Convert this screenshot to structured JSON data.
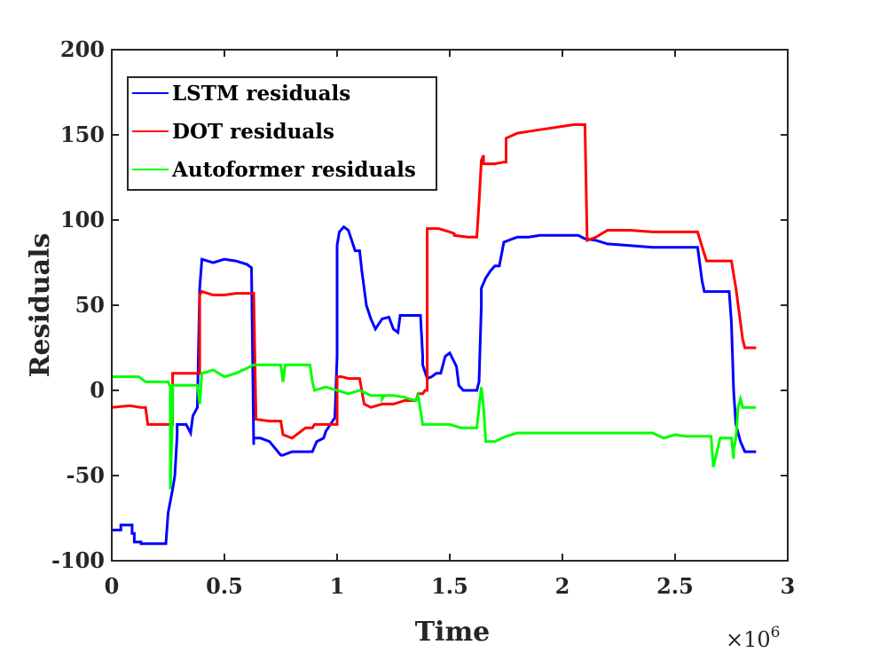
{
  "chart_data": {
    "type": "line",
    "title": "",
    "xlabel": "Time",
    "ylabel": "Residuals",
    "x_exponent_label": "×10",
    "x_exponent_power": "6",
    "xlim": [
      0,
      3
    ],
    "ylim": [
      -100,
      200
    ],
    "x_ticks": [
      0,
      0.5,
      1,
      1.5,
      2,
      2.5,
      3
    ],
    "x_tick_labels": [
      "0",
      "0.5",
      "1",
      "1.5",
      "2",
      "2.5",
      "3"
    ],
    "y_ticks": [
      -100,
      -50,
      0,
      50,
      100,
      150,
      200
    ],
    "y_tick_labels": [
      "-100",
      "-50",
      "0",
      "50",
      "100",
      "150",
      "200"
    ],
    "grid": false,
    "legend_position": "top-left",
    "series": [
      {
        "name": "LSTM residuals",
        "color": "#0000ff",
        "x": [
          0,
          0.04,
          0.04,
          0.09,
          0.09,
          0.1,
          0.1,
          0.13,
          0.13,
          0.2,
          0.24,
          0.25,
          0.27,
          0.28,
          0.29,
          0.29,
          0.33,
          0.35,
          0.36,
          0.38,
          0.39,
          0.4,
          0.45,
          0.5,
          0.55,
          0.6,
          0.62,
          0.63,
          0.63,
          0.66,
          0.7,
          0.75,
          0.76,
          0.8,
          0.86,
          0.89,
          0.91,
          0.94,
          0.95,
          0.97,
          0.99,
          1.0,
          1.0,
          1.01,
          1.03,
          1.05,
          1.07,
          1.08,
          1.1,
          1.11,
          1.12,
          1.13,
          1.15,
          1.17,
          1.18,
          1.2,
          1.23,
          1.25,
          1.27,
          1.28,
          1.3,
          1.35,
          1.37,
          1.38,
          1.38,
          1.4,
          1.42,
          1.44,
          1.46,
          1.48,
          1.5,
          1.53,
          1.54,
          1.56,
          1.6,
          1.62,
          1.63,
          1.64,
          1.64,
          1.66,
          1.68,
          1.7,
          1.72,
          1.74,
          1.76,
          1.8,
          1.85,
          1.9,
          2.0,
          2.07,
          2.1,
          2.15,
          2.2,
          2.3,
          2.4,
          2.5,
          2.6,
          2.62,
          2.63,
          2.65,
          2.7,
          2.74,
          2.75,
          2.76,
          2.77,
          2.78,
          2.79,
          2.81,
          2.86
        ],
        "y": [
          -82,
          -82,
          -79,
          -79,
          -84,
          -84,
          -89,
          -89,
          -90,
          -90,
          -90,
          -72,
          -58,
          -50,
          -26,
          -20,
          -20,
          -25,
          -15,
          -10,
          60,
          77,
          75,
          77,
          76,
          74,
          72,
          -32,
          -28,
          -28,
          -30,
          -38,
          -38,
          -36,
          -36,
          -36,
          -30,
          -28,
          -24,
          -20,
          -16,
          20,
          85,
          93,
          96,
          94,
          86,
          82,
          82,
          70,
          60,
          50,
          42,
          36,
          38,
          42,
          43,
          36,
          34,
          44,
          44,
          44,
          44,
          20,
          15,
          7,
          8,
          10,
          10,
          20,
          22,
          14,
          3,
          0,
          0,
          0,
          5,
          50,
          60,
          66,
          70,
          73,
          73,
          87,
          88,
          90,
          90,
          91,
          91,
          91,
          89,
          88,
          86,
          85,
          84,
          84,
          84,
          64,
          58,
          58,
          58,
          58,
          40,
          0,
          -20,
          -25,
          -30,
          -36,
          -36
        ]
      },
      {
        "name": "DOT residuals",
        "color": "#ff0000",
        "x": [
          0,
          0.08,
          0.13,
          0.15,
          0.16,
          0.2,
          0.23,
          0.27,
          0.27,
          0.3,
          0.35,
          0.39,
          0.39,
          0.4,
          0.45,
          0.5,
          0.55,
          0.6,
          0.63,
          0.64,
          0.7,
          0.75,
          0.76,
          0.8,
          0.86,
          0.89,
          0.9,
          0.94,
          0.99,
          1.0,
          1.0,
          1.02,
          1.05,
          1.1,
          1.12,
          1.15,
          1.2,
          1.25,
          1.3,
          1.35,
          1.36,
          1.38,
          1.39,
          1.4,
          1.4,
          1.45,
          1.5,
          1.52,
          1.52,
          1.58,
          1.62,
          1.63,
          1.64,
          1.65,
          1.65,
          1.7,
          1.74,
          1.75,
          1.75,
          1.8,
          1.85,
          1.9,
          1.95,
          2.0,
          2.05,
          2.1,
          2.11,
          2.15,
          2.2,
          2.3,
          2.4,
          2.5,
          2.6,
          2.63,
          2.64,
          2.7,
          2.75,
          2.77,
          2.79,
          2.8,
          2.81,
          2.82,
          2.86
        ],
        "y": [
          -10,
          -9,
          -10,
          -10,
          -20,
          -20,
          -20,
          -20,
          10,
          10,
          10,
          10,
          56,
          58,
          56,
          56,
          57,
          57,
          57,
          -17,
          -18,
          -18,
          -26,
          -28,
          -22,
          -22,
          -20,
          -20,
          -20,
          -20,
          8,
          8,
          7,
          7,
          -8,
          -10,
          -8,
          -8,
          -6,
          -6,
          -2,
          -2,
          0,
          0,
          95,
          95,
          93,
          92,
          91,
          90,
          90,
          110,
          135,
          138,
          133,
          133,
          134,
          134,
          148,
          151,
          152,
          153,
          154,
          155,
          156,
          156,
          88,
          90,
          94,
          94,
          93,
          93,
          93,
          80,
          76,
          76,
          76,
          60,
          40,
          30,
          25,
          25,
          25
        ]
      },
      {
        "name": "Autoformer residuals",
        "color": "#00ff00",
        "x": [
          0,
          0.05,
          0.1,
          0.12,
          0.15,
          0.2,
          0.25,
          0.26,
          0.26,
          0.27,
          0.27,
          0.3,
          0.35,
          0.38,
          0.39,
          0.4,
          0.45,
          0.5,
          0.55,
          0.6,
          0.63,
          0.65,
          0.68,
          0.7,
          0.75,
          0.76,
          0.77,
          0.8,
          0.85,
          0.88,
          0.89,
          0.9,
          0.95,
          1.0,
          1.05,
          1.1,
          1.15,
          1.2,
          1.2,
          1.21,
          1.22,
          1.25,
          1.3,
          1.32,
          1.35,
          1.36,
          1.38,
          1.4,
          1.45,
          1.5,
          1.55,
          1.6,
          1.62,
          1.64,
          1.65,
          1.66,
          1.7,
          1.75,
          1.8,
          1.85,
          1.9,
          2.0,
          2.1,
          2.2,
          2.3,
          2.4,
          2.45,
          2.5,
          2.55,
          2.6,
          2.65,
          2.66,
          2.67,
          2.7,
          2.75,
          2.76,
          2.76,
          2.77,
          2.78,
          2.79,
          2.8,
          2.82,
          2.86
        ],
        "y": [
          8,
          8,
          8,
          8,
          5,
          5,
          5,
          2,
          -58,
          -10,
          3,
          3,
          3,
          3,
          -8,
          10,
          12,
          8,
          10,
          13,
          15,
          15,
          15,
          15,
          15,
          5,
          15,
          15,
          15,
          15,
          5,
          0,
          2,
          0,
          -2,
          0,
          -3,
          -3,
          -5,
          -3,
          -3,
          -3,
          -4,
          -5,
          -6,
          -3,
          -20,
          -20,
          -20,
          -20,
          -22,
          -22,
          -22,
          2,
          -10,
          -30,
          -30,
          -27,
          -25,
          -25,
          -25,
          -25,
          -25,
          -25,
          -25,
          -25,
          -28,
          -26,
          -27,
          -27,
          -27,
          -27,
          -45,
          -28,
          -28,
          -40,
          -35,
          -28,
          -10,
          -5,
          -10,
          -10,
          -10
        ]
      }
    ]
  }
}
